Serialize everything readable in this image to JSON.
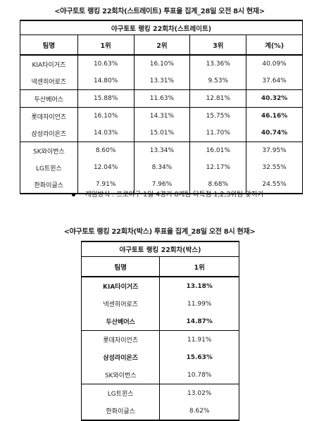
{
  "section1": {
    "title": "<야구토토 랭킹 22회차(스트레이트) 투표율 집계_28일 오전 8시 현재>",
    "caption": "야구토토 랭킹 22회차(스트레이트)",
    "headers": [
      "팀명",
      "1위",
      "2위",
      "3위",
      "계(%)"
    ],
    "rows": [
      {
        "team": "KIA타이거즈",
        "p1": "10.63%",
        "p2": "16.10%",
        "p3": "13.36%",
        "total": "40.09%"
      },
      {
        "team": "넥센히어로즈",
        "p1": "14.80%",
        "p2": "13.31%",
        "p3": "9.53%",
        "total": "37.64%"
      },
      {
        "team": "두산베어스",
        "p1": "15.88%",
        "p2": "11.63%",
        "p3": "12.81%",
        "total": "40.32%"
      },
      {
        "team": "롯데자이언츠",
        "p1": "16.10%",
        "p2": "14.31%",
        "p3": "15.75%",
        "total": "46.16%"
      },
      {
        "team": "삼성라이온즈",
        "p1": "14.03%",
        "p2": "15.01%",
        "p3": "11.70%",
        "total": "40.74%"
      },
      {
        "team": "SK와이번스",
        "p1": "8.60%",
        "p2": "13.34%",
        "p3": "16.01%",
        "total": "37.95%"
      },
      {
        "team": "LG트윈스",
        "p1": "12.04%",
        "p2": "8.34%",
        "p3": "12.17%",
        "total": "32.55%"
      },
      {
        "team": "한화이글스",
        "p1": "7.91%",
        "p2": "7.96%",
        "p3": "8.68%",
        "total": "24.55%"
      }
    ]
  },
  "note": "게임방식 : 프로야구 1일 4경기 8개팀 다득점 1,2,3위팀 맞히기",
  "section2": {
    "title": "<야구토토 랭킹 22회차(박스) 투표율 집계_28일 오전 8시 현재>",
    "caption": "야구토토 랭킹 22회차(박스)",
    "headers": [
      "팀명",
      "1위"
    ],
    "rows": [
      {
        "team": "KIA타이거즈",
        "p1": "13.18%"
      },
      {
        "team": "넥센히어로즈",
        "p1": "11.99%"
      },
      {
        "team": "두산베어스",
        "p1": "14.87%"
      },
      {
        "team": "롯데자이언츠",
        "p1": "11.91%"
      },
      {
        "team": "삼성라이온즈",
        "p1": "15.63%"
      },
      {
        "team": "SK와이번스",
        "p1": "10.78%"
      },
      {
        "team": "LG트윈스",
        "p1": "13.02%"
      },
      {
        "team": "한화이글스",
        "p1": "8.62%"
      }
    ]
  }
}
